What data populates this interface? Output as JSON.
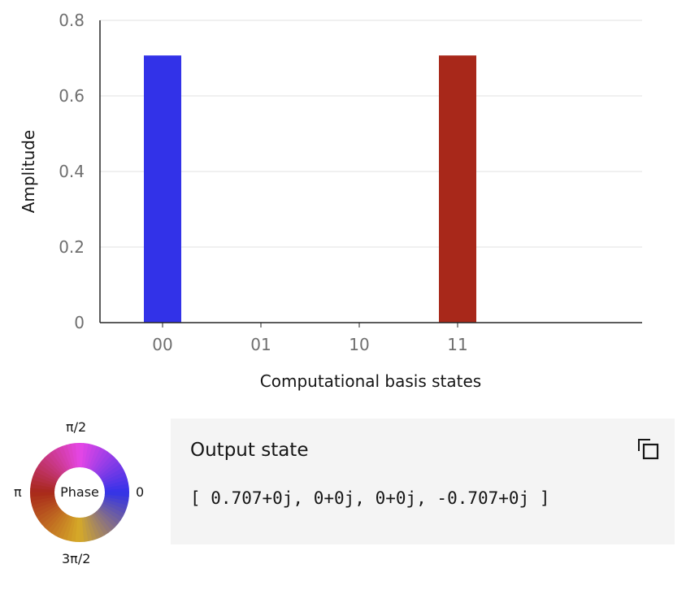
{
  "chart_data": {
    "type": "bar",
    "categories": [
      "00",
      "01",
      "10",
      "11"
    ],
    "values": [
      0.707,
      0,
      0,
      0.707
    ],
    "bar_colors": [
      "#3232e8",
      null,
      null,
      "#a8281a"
    ],
    "xlabel": "Computational basis states",
    "ylabel": "Amplitude",
    "ylim": [
      0,
      0.8
    ],
    "yticks": [
      0,
      0.2,
      0.4,
      0.6,
      0.8
    ],
    "ytick_labels": [
      "0",
      "0.2",
      "0.4",
      "0.6",
      "0.8"
    ],
    "grid": true
  },
  "phase_wheel": {
    "center_label": "Phase",
    "label_top": "π/2",
    "label_left": "π",
    "label_right": "0",
    "label_bottom": "3π/2"
  },
  "output": {
    "title": "Output state",
    "vector": "[ 0.707+0j, 0+0j, 0+0j, -0.707+0j ]",
    "copy_icon": "copy-icon"
  }
}
